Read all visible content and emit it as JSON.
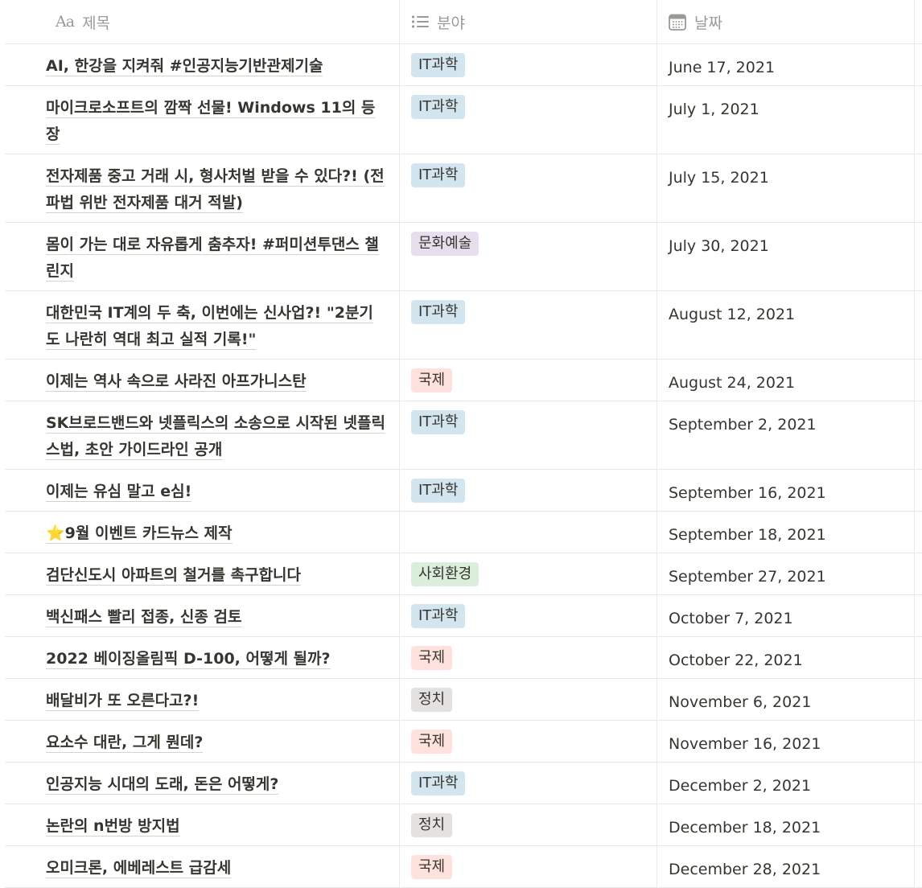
{
  "columns": {
    "title": "제목",
    "title_icon_text": "Aa",
    "category": "분야",
    "date": "날짜"
  },
  "tag_colors": {
    "IT과학": "#d3e5ef",
    "문화예술": "#e8deee",
    "국제": "#ffe2dd",
    "사회환경": "#dbeddb",
    "정치": "#e3e2e0"
  },
  "rows": [
    {
      "title": "AI, 한강을 지켜줘 #인공지능기반관제기술",
      "category": "IT과학",
      "date": "June 17, 2021"
    },
    {
      "title": "마이크로소프트의 깜짝 선물! Windows 11의 등장",
      "category": "IT과학",
      "date": "July 1, 2021"
    },
    {
      "title": "전자제품 중고 거래 시, 형사처벌 받을 수 있다?! (전파법 위반 전자제품 대거 적발)",
      "category": "IT과학",
      "date": "July 15, 2021"
    },
    {
      "title": "몸이 가는 대로 자유롭게 춤추자! #퍼미션투댄스 챌린지",
      "category": "문화예술",
      "date": "July 30, 2021"
    },
    {
      "title": "대한민국 IT계의 두 축, 이번에는 신사업?! \"2분기도 나란히 역대 최고 실적 기록!\"",
      "category": "IT과학",
      "date": "August 12, 2021"
    },
    {
      "title": "이제는 역사 속으로 사라진 아프가니스탄",
      "category": "국제",
      "date": "August 24, 2021"
    },
    {
      "title": "SK브로드밴드와 넷플릭스의 소송으로 시작된 넷플릭스법, 초안 가이드라인 공개",
      "category": "IT과학",
      "date": "September 2, 2021"
    },
    {
      "title": "이제는 유심 말고 e심!",
      "category": "IT과학",
      "date": "September 16, 2021"
    },
    {
      "title": "⭐9월 이벤트 카드뉴스 제작",
      "category": "",
      "date": "September 18, 2021"
    },
    {
      "title": "검단신도시 아파트의 철거를 촉구합니다",
      "category": "사회환경",
      "date": "September 27, 2021"
    },
    {
      "title": "백신패스 빨리 접종, 신종 검토",
      "category": "IT과학",
      "date": "October 7, 2021"
    },
    {
      "title": "2022 베이징올림픽 D-100, 어떻게 될까?",
      "category": "국제",
      "date": "October 22, 2021"
    },
    {
      "title": "배달비가 또 오른다고?!",
      "category": "정치",
      "date": "November 6, 2021"
    },
    {
      "title": "요소수 대란, 그게 뭔데?",
      "category": "국제",
      "date": "November 16, 2021"
    },
    {
      "title": "인공지능 시대의 도래, 돈은 어떻게?",
      "category": "IT과학",
      "date": "December 2, 2021"
    },
    {
      "title": "논란의 n번방 방지법",
      "category": "정치",
      "date": "December 18, 2021"
    },
    {
      "title": "오미크론, 에베레스트 급감세",
      "category": "국제",
      "date": "December 28, 2021"
    }
  ]
}
